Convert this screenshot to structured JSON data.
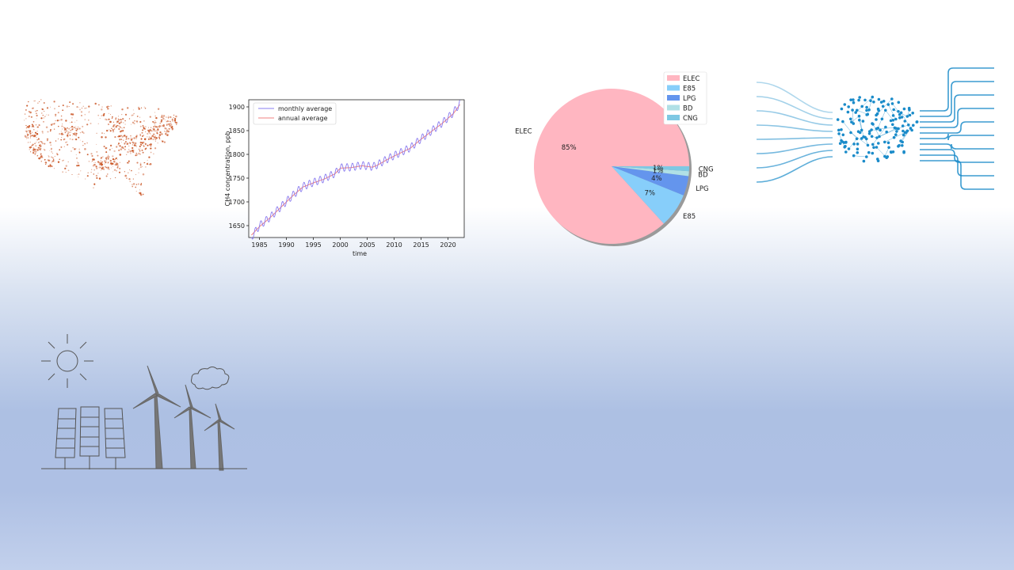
{
  "colors": {
    "map_dots": "#c8501e",
    "ch4_monthly": "#8a7cf0",
    "ch4_annual": "#f08080",
    "brain_lines": "#1a8bc9",
    "renew_stroke": "#555555"
  },
  "icons": {
    "map": "us-emissions-dot-map",
    "brain": "neural-network-brain-icon",
    "renewables": "solar-wind-energy-illustration"
  },
  "chart_data": [
    {
      "type": "line",
      "title": "",
      "xlabel": "time",
      "ylabel": "CH4 concentration, ppb",
      "xlim": [
        1983,
        2023
      ],
      "ylim": [
        1625,
        1915
      ],
      "xticks": [
        "1985",
        "1990",
        "1995",
        "2000",
        "2005",
        "2010",
        "2015",
        "2020"
      ],
      "yticks": [
        "1650",
        "1700",
        "1750",
        "1800",
        "1850",
        "1900"
      ],
      "legend_position": "top-left",
      "series": [
        {
          "name": "monthly average",
          "color": "#8a7cf0",
          "seasonal_amplitude": 8,
          "x": [
            1983.5,
            1985,
            1987,
            1989,
            1991,
            1993,
            1995,
            1997,
            1999,
            2000,
            2002,
            2004,
            2006,
            2007,
            2009,
            2011,
            2013,
            2015,
            2017,
            2019,
            2021,
            2022.2
          ],
          "values": [
            1626,
            1650,
            1668,
            1690,
            1712,
            1732,
            1741,
            1749,
            1760,
            1772,
            1773,
            1777,
            1774,
            1779,
            1792,
            1803,
            1814,
            1833,
            1850,
            1867,
            1888,
            1908
          ]
        },
        {
          "name": "annual average",
          "color": "#f08080",
          "x": [
            1983.5,
            1985,
            1987,
            1989,
            1991,
            1993,
            1995,
            1997,
            1999,
            2000,
            2002,
            2004,
            2006,
            2007,
            2009,
            2011,
            2013,
            2015,
            2017,
            2019,
            2021,
            2022.2
          ],
          "values": [
            1630,
            1648,
            1667,
            1689,
            1711,
            1731,
            1740,
            1748,
            1759,
            1771,
            1772,
            1776,
            1773,
            1778,
            1791,
            1802,
            1813,
            1832,
            1849,
            1866,
            1886,
            1905
          ]
        }
      ]
    },
    {
      "type": "pie",
      "title": "",
      "legend_position": "top-right",
      "slices": [
        {
          "label": "ELEC",
          "value": 85,
          "pct_label": "85%",
          "color": "#ffb6c1"
        },
        {
          "label": "E85",
          "value": 7,
          "pct_label": "7%",
          "color": "#87cefa"
        },
        {
          "label": "LPG",
          "value": 4,
          "pct_label": "4%",
          "color": "#6495ed"
        },
        {
          "label": "BD",
          "value": 1,
          "pct_label": "1%",
          "color": "#b0e0e6"
        },
        {
          "label": "CNG",
          "value": 1,
          "pct_label": "1%",
          "color": "#7ec8e3"
        }
      ]
    }
  ]
}
